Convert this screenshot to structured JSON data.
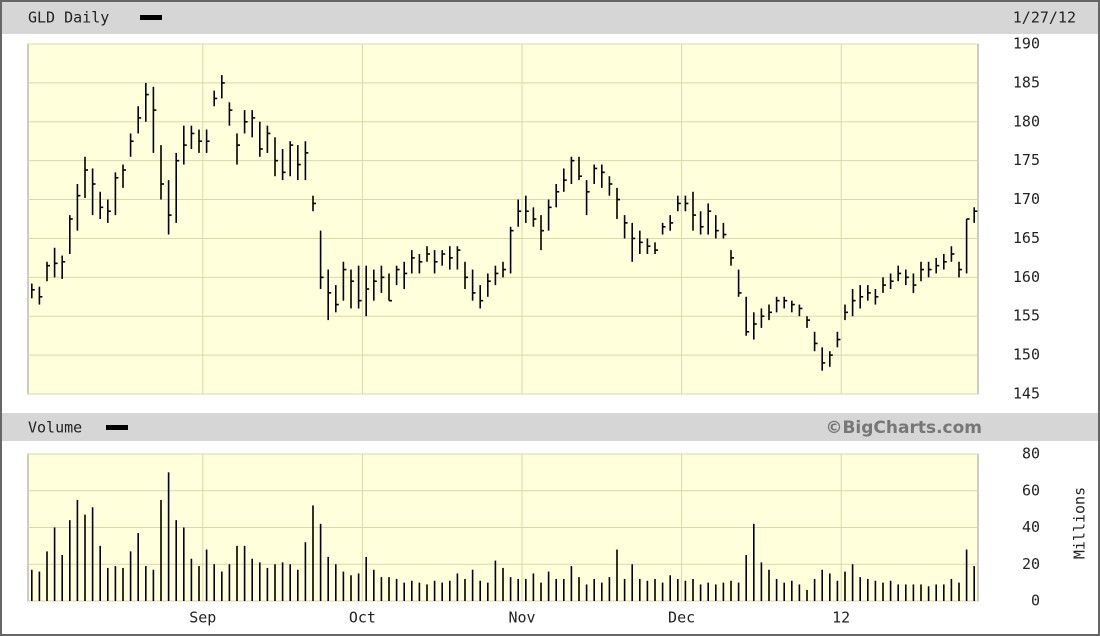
{
  "chart_data": [
    {
      "type": "hlc",
      "title": "GLD Daily",
      "date": "1/27/12",
      "categories": [
        null,
        null,
        null,
        null,
        null,
        null,
        null,
        null,
        null,
        null,
        null,
        null,
        null,
        null,
        null,
        null,
        null,
        null,
        null,
        null,
        null,
        null,
        null,
        "Sep",
        null,
        null,
        null,
        null,
        null,
        null,
        null,
        null,
        null,
        null,
        null,
        null,
        null,
        null,
        null,
        null,
        null,
        null,
        null,
        null,
        "Oct",
        null,
        null,
        null,
        null,
        null,
        null,
        null,
        null,
        null,
        null,
        null,
        null,
        null,
        null,
        null,
        null,
        null,
        null,
        null,
        null,
        "Nov",
        null,
        null,
        null,
        null,
        null,
        null,
        null,
        null,
        null,
        null,
        null,
        null,
        null,
        null,
        null,
        null,
        null,
        null,
        null,
        null,
        "Dec",
        null,
        null,
        null,
        null,
        null,
        null,
        null,
        null,
        null,
        null,
        null,
        null,
        null,
        null,
        null,
        null,
        null,
        null,
        null,
        null,
        "12",
        null,
        null,
        null,
        null,
        null,
        null,
        null,
        null,
        null,
        null,
        null,
        null,
        null,
        null,
        null,
        null,
        null
      ],
      "color": "#000000",
      "high": [
        159.2,
        158.8,
        162.0,
        163.8,
        162.8,
        168.0,
        172.0,
        175.5,
        174.0,
        171.0,
        170.0,
        173.5,
        174.5,
        178.5,
        182.0,
        185.0,
        184.5,
        177.0,
        172.5,
        176.0,
        179.5,
        179.5,
        179.0,
        179.0,
        184.0,
        186.0,
        182.5,
        178.5,
        181.5,
        181.5,
        180.0,
        179.5,
        178.0,
        176.5,
        177.5,
        177.0,
        177.5,
        170.5,
        166.0,
        161.0,
        159.0,
        162.0,
        161.0,
        161.5,
        161.5,
        161.0,
        161.5,
        160.5,
        161.5,
        162.0,
        163.5,
        163.0,
        164.0,
        163.5,
        163.5,
        164.0,
        164.0,
        162.0,
        161.0,
        159.0,
        160.5,
        161.5,
        162.0,
        166.5,
        170.0,
        170.5,
        169.0,
        168.0,
        170.0,
        172.0,
        174.0,
        175.5,
        175.5,
        172.5,
        174.5,
        174.5,
        173.0,
        171.5,
        168.0,
        167.0,
        166.0,
        165.0,
        164.5,
        167.0,
        168.0,
        170.5,
        170.5,
        171.0,
        168.5,
        169.5,
        168.0,
        167.0,
        163.5,
        161.0,
        157.5,
        155.5,
        156.0,
        156.5,
        157.5,
        157.5,
        157.0,
        156.5,
        155.0,
        153.0,
        151.0,
        150.5,
        153.0,
        156.5,
        158.5,
        159.0,
        159.0,
        158.5,
        160.0,
        160.5,
        161.5,
        161.0,
        160.5,
        162.0,
        162.0,
        162.5,
        163.0,
        164.0,
        162.0,
        167.5,
        169.0
      ],
      "low": [
        157.3,
        156.5,
        159.5,
        160.0,
        159.8,
        163.0,
        166.0,
        170.2,
        168.0,
        167.5,
        167.0,
        168.0,
        171.5,
        175.5,
        178.5,
        180.0,
        176.0,
        170.0,
        165.5,
        167.0,
        174.5,
        176.5,
        176.0,
        176.0,
        182.0,
        183.0,
        179.5,
        174.5,
        178.5,
        178.0,
        175.5,
        176.0,
        173.0,
        172.5,
        173.0,
        172.5,
        172.5,
        168.5,
        158.5,
        154.5,
        155.5,
        157.0,
        156.0,
        156.0,
        155.0,
        157.0,
        158.0,
        157.0,
        159.0,
        158.5,
        160.5,
        160.5,
        162.0,
        160.5,
        161.5,
        161.0,
        161.0,
        158.5,
        157.0,
        156.0,
        157.5,
        159.0,
        160.0,
        160.5,
        166.5,
        167.0,
        166.5,
        163.5,
        166.0,
        169.0,
        171.0,
        172.0,
        172.5,
        168.0,
        172.0,
        171.5,
        170.5,
        167.5,
        165.0,
        162.0,
        163.0,
        163.0,
        163.0,
        165.5,
        166.0,
        168.5,
        168.5,
        166.0,
        165.5,
        165.5,
        165.0,
        165.0,
        161.5,
        157.5,
        152.5,
        152.0,
        153.5,
        154.5,
        155.5,
        156.0,
        155.5,
        155.0,
        153.5,
        150.5,
        148.0,
        148.5,
        151.0,
        154.5,
        155.0,
        156.0,
        157.0,
        156.5,
        158.0,
        158.5,
        159.5,
        159.0,
        158.0,
        159.5,
        160.0,
        160.5,
        161.0,
        162.0,
        160.0,
        160.5,
        167.0
      ],
      "close": [
        158.4,
        157.5,
        161.5,
        161.8,
        162.0,
        167.5,
        170.5,
        173.8,
        172,
        169,
        168.5,
        172.8,
        173.8,
        177.5,
        180.5,
        183.5,
        181.5,
        172,
        168.0,
        175.0,
        177.0,
        178.5,
        177.5,
        177.5,
        183.0,
        185.0,
        181.5,
        177.0,
        180.0,
        180.5,
        176.5,
        178.5,
        175.0,
        173.5,
        177.0,
        174.5,
        176.0,
        169.5,
        160.0,
        158.0,
        156.5,
        161.0,
        159.5,
        157.0,
        158.5,
        159.5,
        160.0,
        157.0,
        161.0,
        160.5,
        162.5,
        162.0,
        163.0,
        162.0,
        163.0,
        162.5,
        163.5,
        160.0,
        158.0,
        157.0,
        159.5,
        160.5,
        161.0,
        166.0,
        168.5,
        168.5,
        167.5,
        166.0,
        169.0,
        171.0,
        172.5,
        175.0,
        173.0,
        171.0,
        174.0,
        173.5,
        172.0,
        170.0,
        167.0,
        165.0,
        164.5,
        164.0,
        163.5,
        166.5,
        167.0,
        169.5,
        169.5,
        168.0,
        166.5,
        168.5,
        166.0,
        165.5,
        162.5,
        158.0,
        153.0,
        154.0,
        155.0,
        155.5,
        157.0,
        157.0,
        156.5,
        156.0,
        154.5,
        151.5,
        149.0,
        150.0,
        152.0,
        155.5,
        157.0,
        157.5,
        158.0,
        157.5,
        159.0,
        159.5,
        160.5,
        160.0,
        159.0,
        161.0,
        161.0,
        161.5,
        162.0,
        163.0,
        161.0,
        167.5,
        168.5
      ],
      "ylim": [
        145,
        190
      ],
      "yticks": [
        145,
        150,
        155,
        160,
        165,
        170,
        175,
        180,
        185,
        190
      ],
      "grid": true
    },
    {
      "type": "bar",
      "title": "Volume",
      "source": "©BigCharts.com",
      "y_label": "Millions",
      "color": "#000000",
      "values": [
        17,
        16,
        27,
        40,
        25,
        44,
        55,
        47,
        51,
        30,
        18,
        19,
        18,
        27,
        37,
        19,
        17,
        55,
        70,
        44,
        40,
        23,
        19,
        28,
        20,
        16,
        20,
        30,
        30,
        23,
        21,
        18,
        20,
        21,
        20,
        17,
        32,
        52,
        42,
        24,
        20,
        16,
        14,
        15,
        24,
        17,
        13,
        13,
        12,
        10,
        11,
        10,
        9,
        11,
        10,
        11,
        15,
        12,
        17,
        11,
        10,
        22,
        18,
        13,
        12,
        12,
        15,
        10,
        16,
        12,
        12,
        19,
        13,
        9,
        12,
        10,
        13,
        28,
        12,
        20,
        12,
        11,
        12,
        10,
        14,
        12,
        11,
        12,
        9,
        10,
        9,
        10,
        11,
        10,
        25,
        42,
        21,
        17,
        12,
        10,
        11,
        9,
        6,
        12,
        17,
        15,
        11,
        16,
        20,
        13,
        12,
        11,
        10,
        11,
        9,
        9,
        9,
        9,
        8,
        9,
        9,
        12,
        10,
        28,
        19
      ],
      "ylim": [
        0,
        80
      ],
      "yticks": [
        0,
        20,
        40,
        60,
        80
      ],
      "grid": true
    }
  ]
}
